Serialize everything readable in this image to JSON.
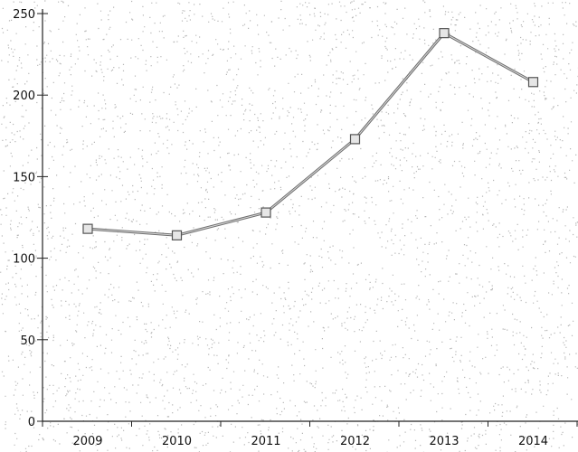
{
  "chart_data": {
    "type": "line",
    "title": "",
    "xlabel": "",
    "ylabel": "",
    "categories": [
      "2009",
      "2010",
      "2011",
      "2012",
      "2013",
      "2014"
    ],
    "series": [
      {
        "values": [
          118,
          114,
          128,
          173,
          238,
          208
        ]
      }
    ],
    "ylim": [
      0,
      250
    ],
    "yticks": [
      "0",
      "50",
      "100",
      "150",
      "200",
      "250"
    ],
    "grid": false,
    "legend": "none",
    "colors": {
      "line": "#6f6f6f",
      "marker_fill": "#e6e6e6",
      "axis": "#222222",
      "background": "#ffffff"
    }
  }
}
